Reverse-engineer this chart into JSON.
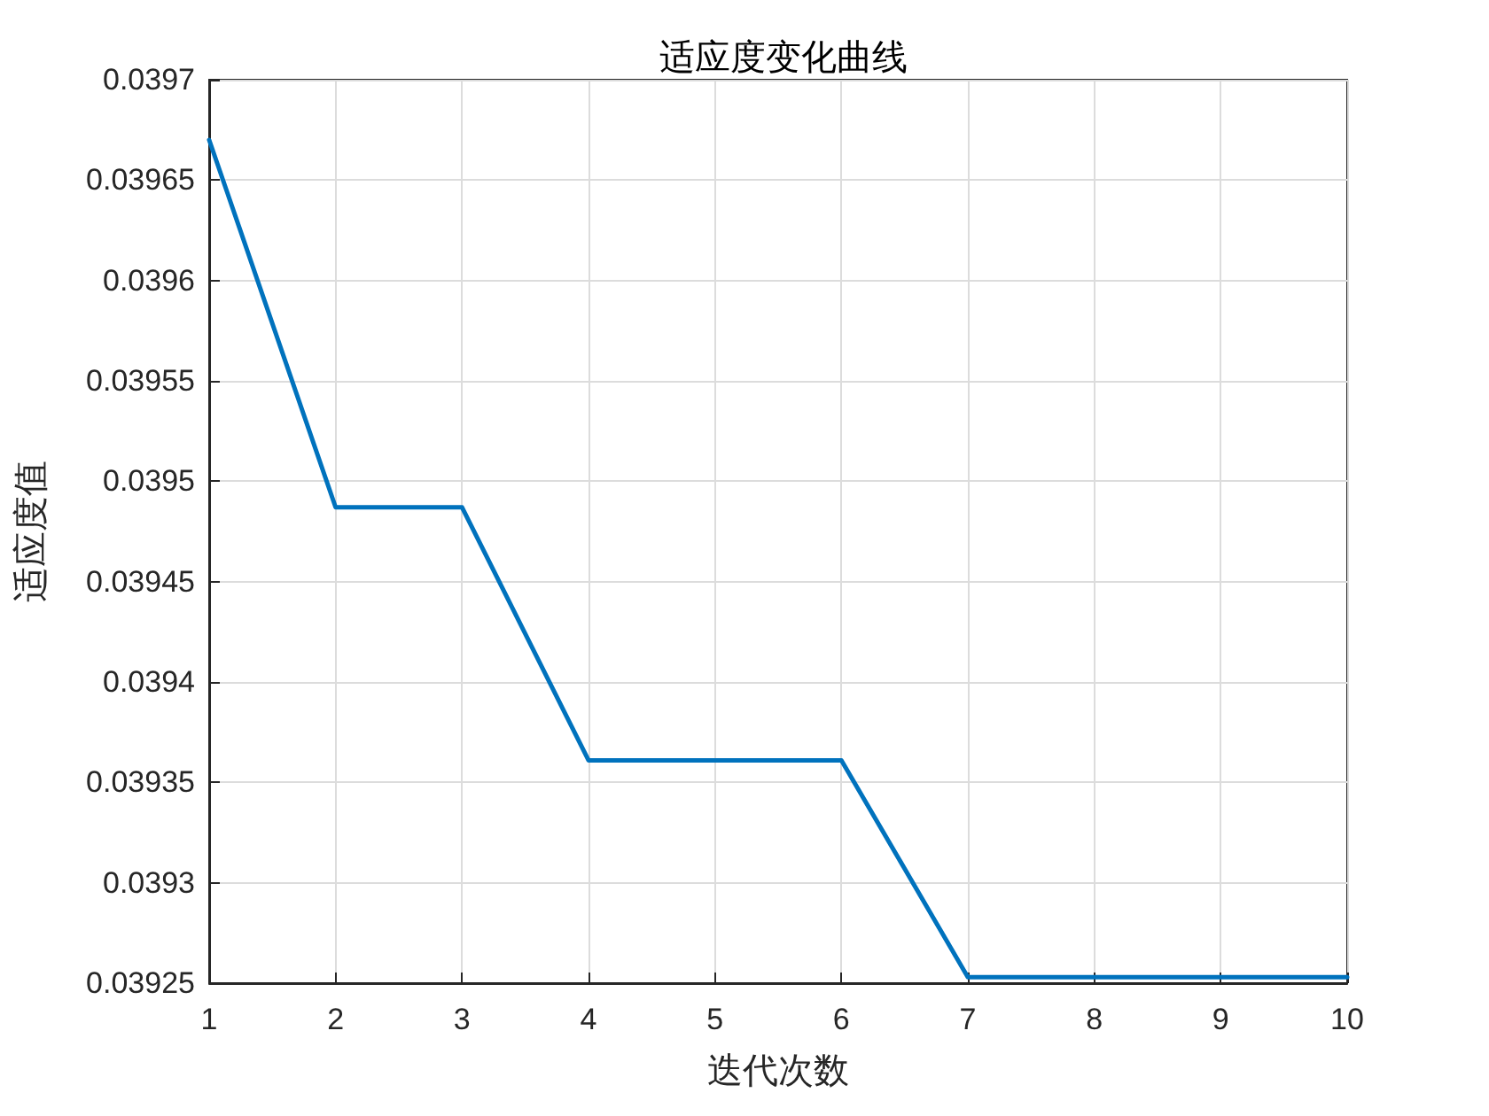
{
  "chart_data": {
    "type": "line",
    "title": "适应度变化曲线",
    "xlabel": "迭代次数",
    "ylabel": "适应度值",
    "x": [
      1,
      2,
      3,
      4,
      5,
      6,
      7,
      8,
      9,
      10
    ],
    "series": [
      {
        "color": "#0072bd",
        "values": [
          0.03967,
          0.039487,
          0.039487,
          0.039361,
          0.039361,
          0.039361,
          0.039253,
          0.039253,
          0.039253,
          0.039253
        ]
      }
    ],
    "xlim": [
      1,
      10
    ],
    "xticks": [
      1,
      2,
      3,
      4,
      5,
      6,
      7,
      8,
      9,
      10
    ],
    "ylim": [
      0.03925,
      0.0397
    ],
    "yticks": [
      0.03925,
      0.0393,
      0.03935,
      0.0394,
      0.03945,
      0.0395,
      0.03955,
      0.0396,
      0.03965,
      0.0397
    ],
    "grid": true,
    "marker": "none",
    "line_style": "solid"
  }
}
